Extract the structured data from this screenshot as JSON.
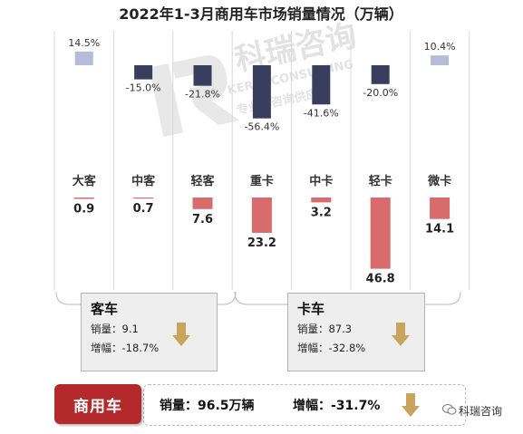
{
  "title": "2022年1-3月商用车市场销量情况（万辆）",
  "chart_data": {
    "type": "bar",
    "title": "2022年1-3月商用车市场销量情况（万辆）",
    "categories": [
      "大客",
      "中客",
      "轻客",
      "重卡",
      "中卡",
      "轻卡",
      "微卡"
    ],
    "series": [
      {
        "values": [
          14.5,
          -15.0,
          -21.8,
          -56.4,
          -41.6,
          -20.0,
          10.4
        ]
      },
      {
        "values": [
          0.9,
          0.7,
          7.6,
          23.2,
          3.2,
          46.8,
          14.1
        ]
      }
    ],
    "growth_labels": [
      "14.5%",
      "-15.0%",
      "-21.8%",
      "-56.4%",
      "-41.6%",
      "-20.0%",
      "10.4%"
    ],
    "value_labels": [
      "0.9",
      "0.7",
      "7.6",
      "23.2",
      "3.2",
      "46.8",
      "14.1"
    ]
  },
  "colors": {
    "growth_positive": "#b4bcd9",
    "growth_negative": "#373e5e",
    "sales": "#d86c6c",
    "badge": "#b4292b",
    "arrow": "#c9a45c"
  },
  "groups": {
    "bus": {
      "name": "客车",
      "sales_line": "销量：9.1",
      "growth_line": "增幅：-18.7%"
    },
    "truck": {
      "name": "卡车",
      "sales_line": "销量：87.3",
      "growth_line": "增幅：-32.8%"
    }
  },
  "bottom": {
    "badge": "商用车",
    "sales_text": "销量：96.5万辆",
    "growth_text": "增幅：-31.7%"
  },
  "watermark": {
    "main": "科瑞咨询",
    "english": "KERUI CONSULTING",
    "slogan": "专业的咨询供应商"
  },
  "brand": {
    "name": "科瑞咨询",
    "icon": "wechat-icon"
  },
  "icons": {
    "down_arrow": "down-arrow-icon"
  }
}
